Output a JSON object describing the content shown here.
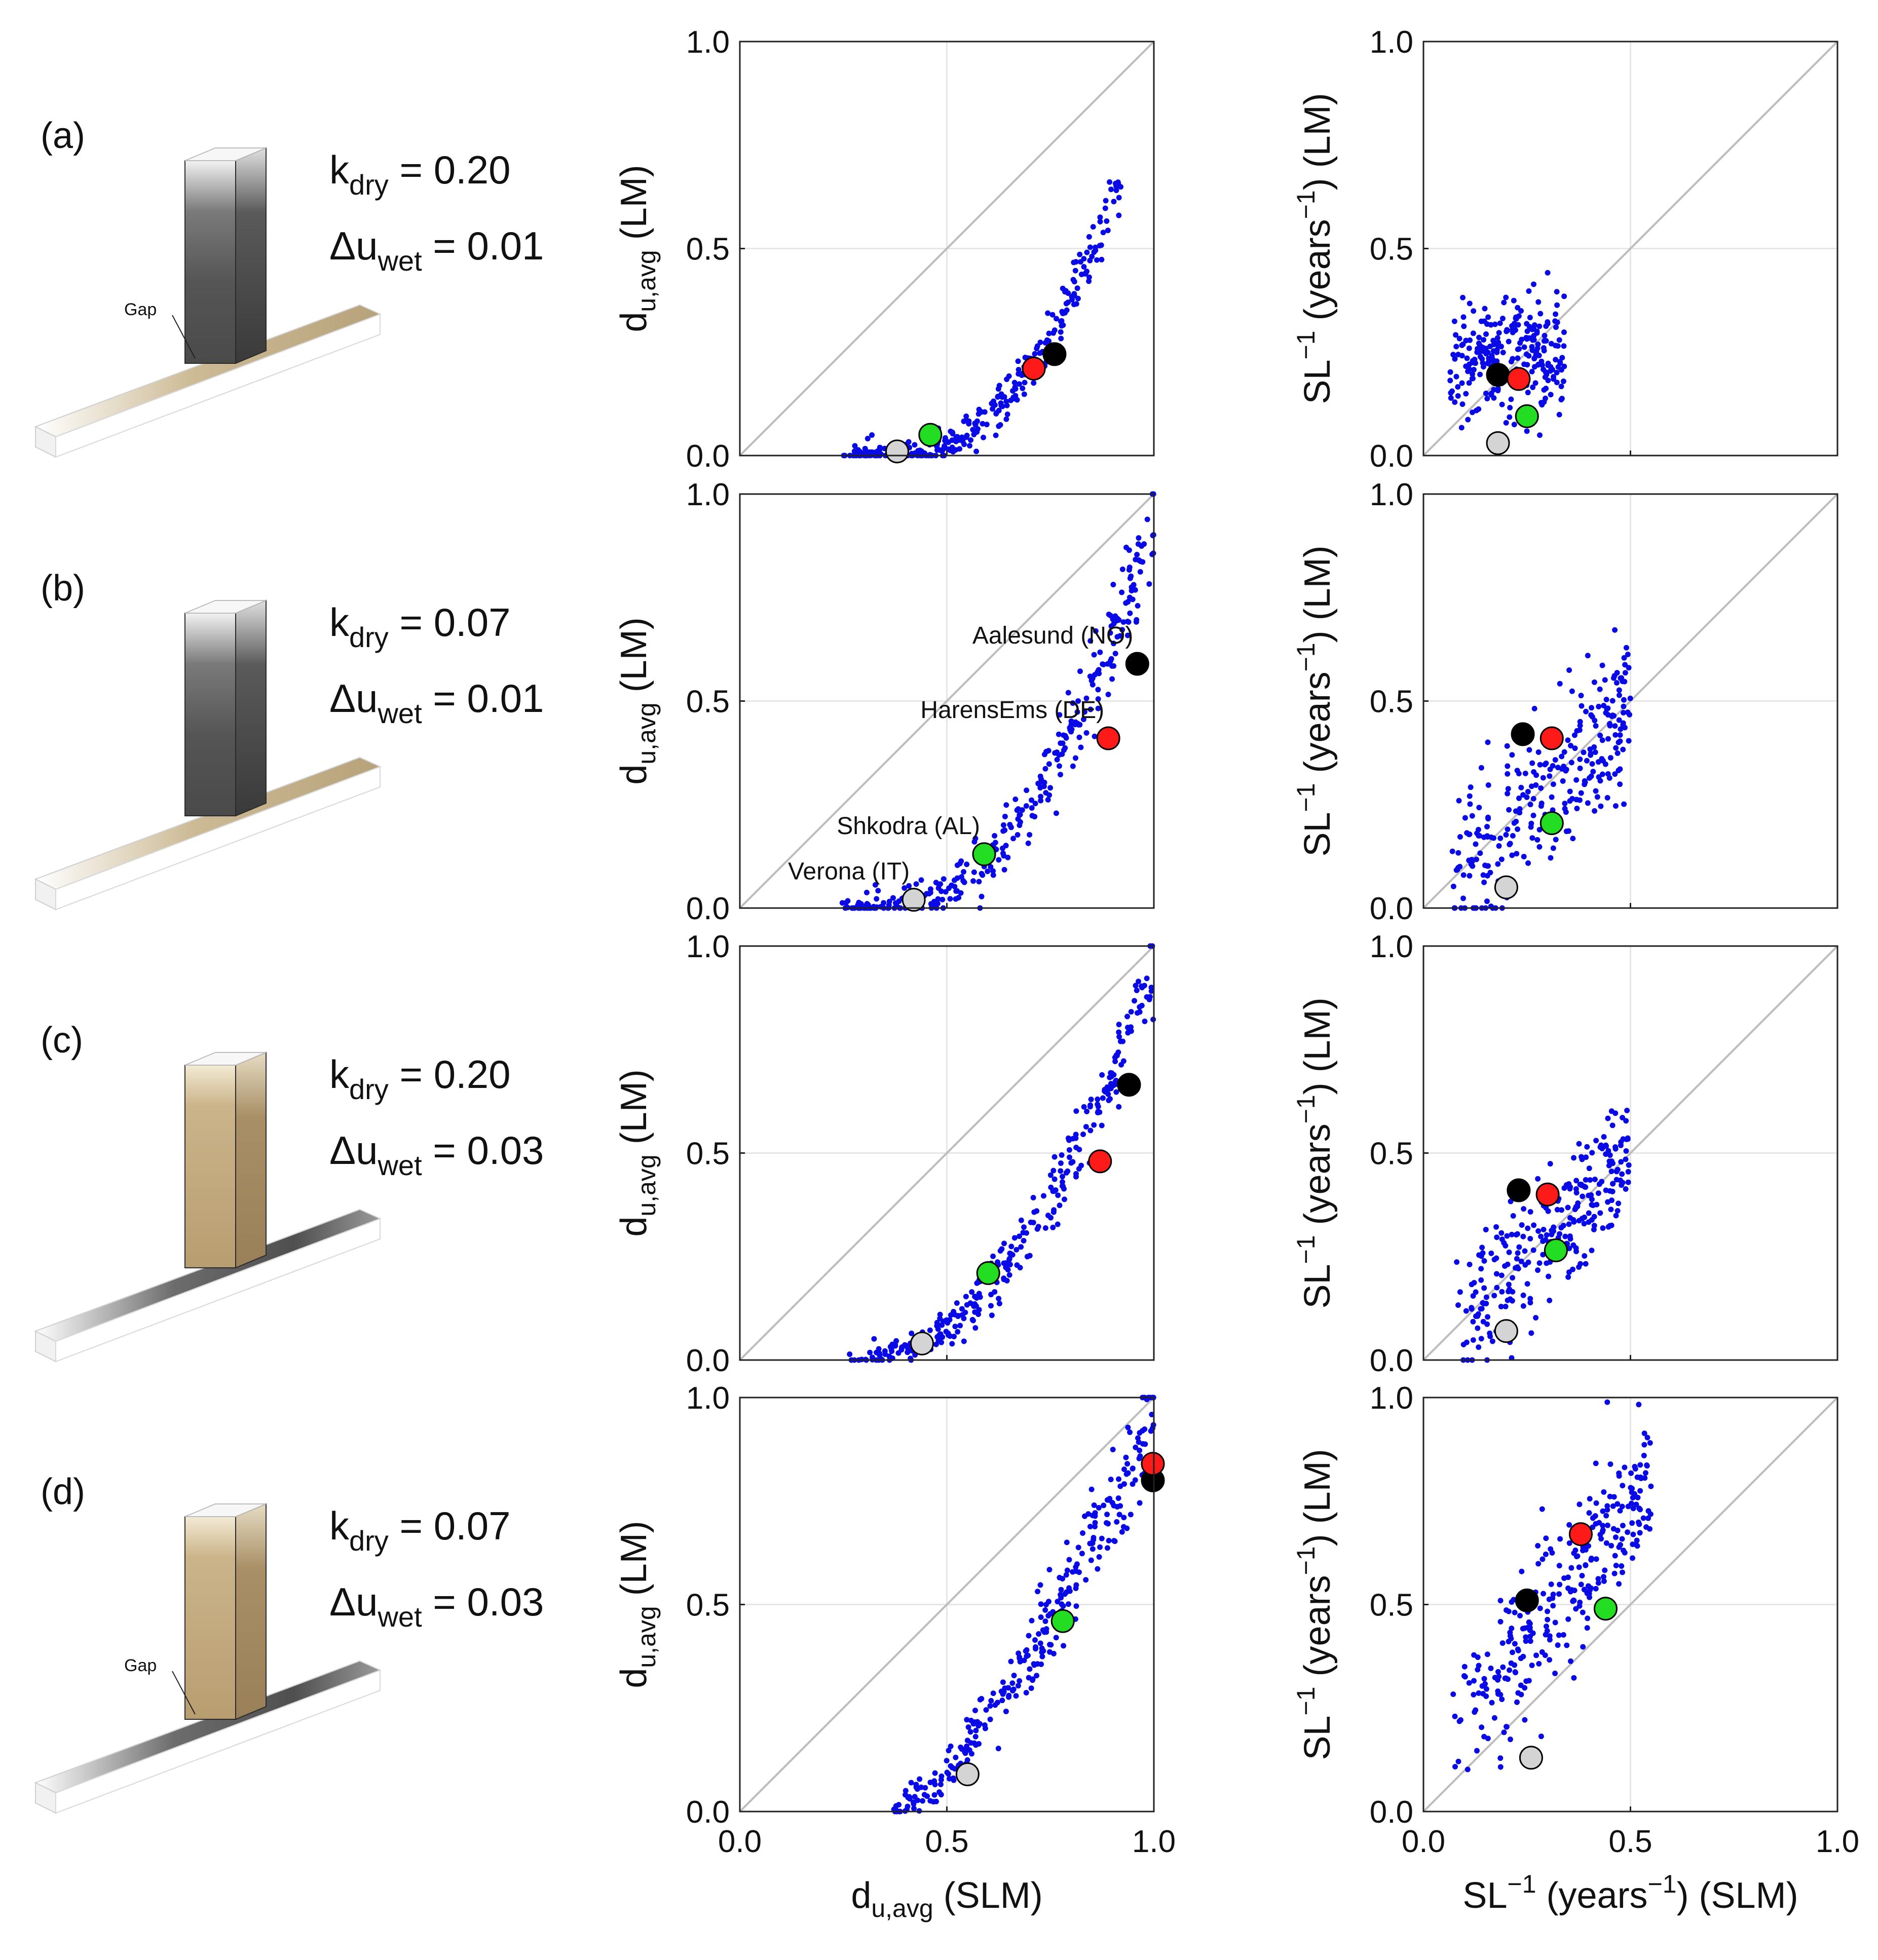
{
  "figure": {
    "rows": [
      {
        "id": "a",
        "letter": "(a)",
        "k_dry": "0.20",
        "du_wet": "0.01",
        "gap": "Gap",
        "post_material": "dark",
        "beam_material": "light"
      },
      {
        "id": "b",
        "letter": "(b)",
        "k_dry": "0.07",
        "du_wet": "0.01",
        "gap": "",
        "post_material": "dark",
        "beam_material": "light"
      },
      {
        "id": "c",
        "letter": "(c)",
        "k_dry": "0.20",
        "du_wet": "0.03",
        "gap": "",
        "post_material": "light",
        "beam_material": "dark"
      },
      {
        "id": "d",
        "letter": "(d)",
        "k_dry": "0.07",
        "du_wet": "0.03",
        "gap": "Gap",
        "post_material": "light",
        "beam_material": "dark"
      }
    ],
    "k_symbol": "k",
    "k_sub": "dry",
    "du_symbol": "Δu",
    "du_sub": "wet",
    "equals": " = ",
    "colors": {
      "cloud": "#0a0ae6",
      "diagonal": "#bdbdbd",
      "grid": "#e6e6e6",
      "highlights": {
        "black": "#000000",
        "red": "#ff1a1a",
        "green": "#22dd22",
        "gray": "#d4d4d4"
      },
      "dark_wood": "#5a5a5a",
      "light_wood": "#c8b48c"
    }
  },
  "chart_data": [
    {
      "id": "du",
      "type": "scatter",
      "xlim": [
        0,
        1
      ],
      "ylim": [
        0,
        1
      ],
      "ticks": [
        "0.0",
        "0.5",
        "1.0"
      ],
      "grid": true,
      "diagonal": true,
      "ylabel": {
        "main": "d",
        "sub": "u,avg",
        "rest": " (LM)"
      },
      "xlabel": {
        "main": "d",
        "sub": "u,avg",
        "rest": " (SLM)"
      },
      "panels": [
        {
          "row": "a",
          "cloud": {
            "kind": "power",
            "x0": 0.25,
            "x1": 0.92,
            "p": 3.0,
            "spread": 0.035,
            "n": 300,
            "seed": 11
          },
          "highlights": [
            {
              "name": "Aalesund (NO)",
              "color": "black",
              "x": 0.76,
              "y": 0.245
            },
            {
              "name": "HarensEms (DE)",
              "color": "red",
              "x": 0.71,
              "y": 0.21
            },
            {
              "name": "Shkodra (AL)",
              "color": "green",
              "x": 0.46,
              "y": 0.05
            },
            {
              "name": "Verona (IT)",
              "color": "gray",
              "x": 0.38,
              "y": 0.01
            }
          ],
          "annotations": []
        },
        {
          "row": "b",
          "cloud": {
            "kind": "power",
            "x0": 0.24,
            "x1": 1.0,
            "p": 2.7,
            "spread": 0.045,
            "n": 320,
            "seed": 23
          },
          "highlights": [
            {
              "name": "Aalesund (NO)",
              "color": "black",
              "x": 0.96,
              "y": 0.59
            },
            {
              "name": "HarensEms (DE)",
              "color": "red",
              "x": 0.89,
              "y": 0.41
            },
            {
              "name": "Shkodra (AL)",
              "color": "green",
              "x": 0.59,
              "y": 0.13
            },
            {
              "name": "Verona (IT)",
              "color": "gray",
              "x": 0.42,
              "y": 0.02
            }
          ],
          "annotations": [
            {
              "text": "Aalesund (NO)",
              "color": "black"
            },
            {
              "text": "HarensEms (DE)",
              "color": "red"
            },
            {
              "text": "Shkodra (AL)",
              "color": "green"
            },
            {
              "text": "Verona (IT)",
              "color": "gray"
            }
          ]
        },
        {
          "row": "c",
          "cloud": {
            "kind": "power",
            "x0": 0.26,
            "x1": 1.0,
            "p": 2.2,
            "spread": 0.04,
            "n": 300,
            "seed": 37
          },
          "highlights": [
            {
              "name": "Aalesund (NO)",
              "color": "black",
              "x": 0.94,
              "y": 0.665
            },
            {
              "name": "HarensEms (DE)",
              "color": "red",
              "x": 0.87,
              "y": 0.48
            },
            {
              "name": "Shkodra (AL)",
              "color": "green",
              "x": 0.6,
              "y": 0.21
            },
            {
              "name": "Verona (IT)",
              "color": "gray",
              "x": 0.44,
              "y": 0.04
            }
          ],
          "annotations": []
        },
        {
          "row": "d",
          "cloud": {
            "kind": "power",
            "x0": 0.36,
            "x1": 1.0,
            "p": 1.5,
            "spread": 0.06,
            "n": 300,
            "seed": 41
          },
          "highlights": [
            {
              "name": "Aalesund (NO)",
              "color": "black",
              "x": 1.0,
              "y": 0.8
            },
            {
              "name": "HarensEms (DE)",
              "color": "red",
              "x": 1.0,
              "y": 0.84
            },
            {
              "name": "Shkodra (AL)",
              "color": "green",
              "x": 0.78,
              "y": 0.46
            },
            {
              "name": "Verona (IT)",
              "color": "gray",
              "x": 0.55,
              "y": 0.09
            }
          ],
          "annotations": []
        }
      ]
    },
    {
      "id": "sl",
      "type": "scatter",
      "xlim": [
        0,
        1
      ],
      "ylim": [
        0,
        1
      ],
      "ticks": [
        "0.0",
        "0.5",
        "1.0"
      ],
      "grid": true,
      "diagonal": true,
      "ylabel": {
        "main": "SL",
        "sup": "−1",
        "mid": " (years",
        "sup2": "−1",
        "rest": ") (LM)"
      },
      "xlabel": {
        "main": "SL",
        "sup": "−1",
        "mid": " (years",
        "sup2": "−1",
        "rest": ") (SLM)"
      },
      "panels": [
        {
          "row": "a",
          "cloud": {
            "kind": "linear",
            "x0": 0.06,
            "x1": 0.34,
            "a": 0.22,
            "b": 0.1,
            "spread": 0.07,
            "n": 260,
            "seed": 53
          },
          "highlights": [
            {
              "name": "Aalesund (NO)",
              "color": "black",
              "x": 0.18,
              "y": 0.195
            },
            {
              "name": "HarensEms (DE)",
              "color": "red",
              "x": 0.23,
              "y": 0.185
            },
            {
              "name": "Shkodra (AL)",
              "color": "green",
              "x": 0.25,
              "y": 0.095
            },
            {
              "name": "Verona (IT)",
              "color": "gray",
              "x": 0.18,
              "y": 0.03
            }
          ]
        },
        {
          "row": "b",
          "cloud": {
            "kind": "linear",
            "x0": 0.07,
            "x1": 0.5,
            "a": 0.0,
            "b": 0.95,
            "spread": 0.09,
            "n": 280,
            "seed": 67
          },
          "highlights": [
            {
              "name": "Aalesund (NO)",
              "color": "black",
              "x": 0.24,
              "y": 0.42
            },
            {
              "name": "HarensEms (DE)",
              "color": "red",
              "x": 0.31,
              "y": 0.41
            },
            {
              "name": "Shkodra (AL)",
              "color": "green",
              "x": 0.31,
              "y": 0.205
            },
            {
              "name": "Verona (IT)",
              "color": "gray",
              "x": 0.2,
              "y": 0.05
            }
          ]
        },
        {
          "row": "c",
          "cloud": {
            "kind": "linear",
            "x0": 0.08,
            "x1": 0.5,
            "a": 0.02,
            "b": 0.95,
            "spread": 0.08,
            "n": 280,
            "seed": 71
          },
          "highlights": [
            {
              "name": "Aalesund (NO)",
              "color": "black",
              "x": 0.23,
              "y": 0.41
            },
            {
              "name": "HarensEms (DE)",
              "color": "red",
              "x": 0.3,
              "y": 0.4
            },
            {
              "name": "Shkodra (AL)",
              "color": "green",
              "x": 0.32,
              "y": 0.265
            },
            {
              "name": "Verona (IT)",
              "color": "gray",
              "x": 0.2,
              "y": 0.07
            }
          ]
        },
        {
          "row": "d",
          "cloud": {
            "kind": "linear",
            "x0": 0.07,
            "x1": 0.55,
            "a": 0.1,
            "b": 1.25,
            "spread": 0.09,
            "n": 300,
            "seed": 89
          },
          "highlights": [
            {
              "name": "Aalesund (NO)",
              "color": "black",
              "x": 0.25,
              "y": 0.51
            },
            {
              "name": "HarensEms (DE)",
              "color": "red",
              "x": 0.38,
              "y": 0.67
            },
            {
              "name": "Shkodra (AL)",
              "color": "green",
              "x": 0.44,
              "y": 0.49
            },
            {
              "name": "Verona (IT)",
              "color": "gray",
              "x": 0.26,
              "y": 0.13
            }
          ]
        }
      ]
    }
  ]
}
